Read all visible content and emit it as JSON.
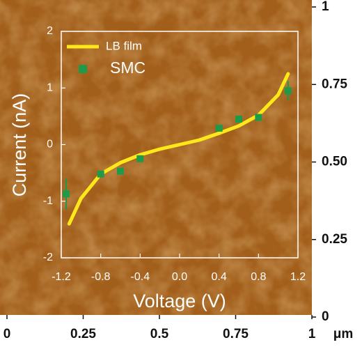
{
  "chart_data": [
    {
      "type": "line",
      "xlabel": "Voltage (V)",
      "ylabel": "Current (nA)",
      "xlim": [
        -1.2,
        1.2
      ],
      "xticks": [
        -1.2,
        -0.8,
        -0.4,
        {
          "value": 0,
          "label": "0.0"
        },
        0.4,
        0.8,
        1.2
      ],
      "ylim": [
        -2,
        2
      ],
      "yticks": [
        -2,
        -1,
        0,
        1,
        2
      ],
      "series": [
        {
          "name": "LB film",
          "color": "#ffe81a",
          "kind": "line",
          "x": [
            -1.12,
            -1.0,
            -0.8,
            -0.6,
            -0.4,
            -0.2,
            0,
            0.2,
            0.4,
            0.6,
            0.8,
            1.0,
            1.1
          ],
          "values": [
            -1.4,
            -0.95,
            -0.52,
            -0.32,
            -0.18,
            -0.08,
            0.0,
            0.08,
            0.2,
            0.33,
            0.52,
            0.88,
            1.25
          ]
        },
        {
          "name": "SMC",
          "color": "#1f9a4a",
          "kind": "errorbar",
          "x": [
            -1.15,
            -0.8,
            -0.6,
            -0.4,
            0.4,
            0.6,
            0.8,
            1.1
          ],
          "values": [
            -0.87,
            -0.52,
            -0.47,
            -0.25,
            0.29,
            0.45,
            0.48,
            0.95
          ],
          "errors": [
            0.28,
            0.05,
            0.05,
            0.05,
            0.05,
            0.05,
            0.06,
            0.17
          ]
        }
      ]
    },
    {
      "type": "image",
      "unit": "μm",
      "xlim": [
        0,
        1
      ],
      "xticks": [
        0,
        0.25,
        0.5,
        0.75,
        1
      ],
      "ylim": [
        0,
        1
      ],
      "yticks": [
        0,
        0.25,
        {
          "value": 0.5,
          "label": "0.50"
        },
        0.75,
        1
      ]
    }
  ]
}
